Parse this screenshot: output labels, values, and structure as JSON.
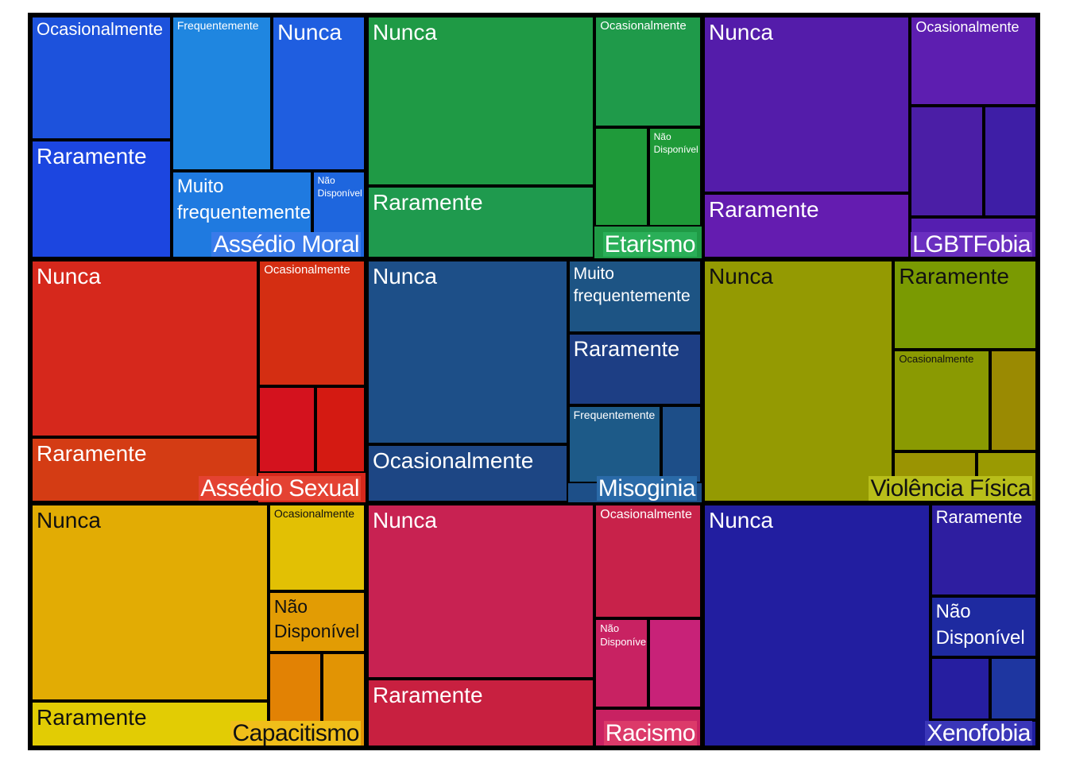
{
  "chart_data": {
    "type": "treemap",
    "title": "",
    "groups": [
      {
        "name": "Assédio Moral",
        "color": "#1f56dc",
        "label_bg": "#3a7bea",
        "label_dark": false,
        "items": [
          {
            "label": "Ocasionalmente",
            "value": 2.1,
            "color": "#1d52dc"
          },
          {
            "label": "Raramente",
            "value": 2.0,
            "color": "#1c46e0"
          },
          {
            "label": "Frequentemente",
            "value": 1.6,
            "color": "#1f86e0"
          },
          {
            "label": "Nunca",
            "value": 1.7,
            "color": "#1f5ee0"
          },
          {
            "label": "Muito frequentemente",
            "value": 1.2,
            "color": "#1f7ae0"
          },
          {
            "label": "Não Disponível",
            "value": 0.45,
            "color": "#1e66de"
          }
        ]
      },
      {
        "name": "Etarismo",
        "color": "#1f9a45",
        "label_bg": "#2aaf58",
        "label_dark": false,
        "items": [
          {
            "label": "Nunca",
            "value": 3.6,
            "color": "#1f9a45"
          },
          {
            "label": "Raramente",
            "value": 2.2,
            "color": "#1f9a4e"
          },
          {
            "label": "Ocasionalmente",
            "value": 1.15,
            "color": "#1f9a4a"
          },
          {
            "label": "",
            "value": 0.7,
            "color": "#1f9a3a"
          },
          {
            "label": "Não Disponível",
            "value": 0.6,
            "color": "#1f9a38"
          }
        ]
      },
      {
        "name": "LGBTFobia",
        "color": "#5a1cb0",
        "label_bg": "#6a2fc0",
        "label_dark": false,
        "items": [
          {
            "label": "Nunca",
            "value": 3.6,
            "color": "#541caa"
          },
          {
            "label": "Raramente",
            "value": 1.3,
            "color": "#641cb0"
          },
          {
            "label": "Ocasionalmente",
            "value": 1.3,
            "color": "#5d1eb0"
          },
          {
            "label": "",
            "value": 0.85,
            "color": "#4b1ea6"
          },
          {
            "label": "",
            "value": 0.55,
            "color": "#3e1ea6"
          },
          {
            "label": "",
            "value": 0.3,
            "color": "#551eb0"
          }
        ]
      },
      {
        "name": "Assédio Sexual",
        "color": "#d6281c",
        "label_bg": "#e44232",
        "label_dark": false,
        "items": [
          {
            "label": "Nunca",
            "value": 4.0,
            "color": "#d6281c"
          },
          {
            "label": "Raramente",
            "value": 1.2,
            "color": "#d43c14"
          },
          {
            "label": "Ocasionalmente",
            "value": 1.3,
            "color": "#d42e12"
          },
          {
            "label": "",
            "value": 0.65,
            "color": "#d4121e"
          },
          {
            "label": "",
            "value": 0.5,
            "color": "#d41a12"
          }
        ]
      },
      {
        "name": "Misoginia",
        "color": "#1d4f88",
        "label_bg": "#2a6aa8",
        "label_dark": false,
        "items": [
          {
            "label": "Nunca",
            "value": 3.5,
            "color": "#1d4f88"
          },
          {
            "label": "Ocasionalmente",
            "value": 1.15,
            "color": "#1d4684"
          },
          {
            "label": "Muito frequentemente",
            "value": 0.85,
            "color": "#1d5484"
          },
          {
            "label": "Raramente",
            "value": 0.85,
            "color": "#1d3e84"
          },
          {
            "label": "Frequentemente",
            "value": 0.75,
            "color": "#1d5a88"
          },
          {
            "label": "",
            "value": 0.3,
            "color": "#1d4e88"
          }
        ]
      },
      {
        "name": "Violência Física",
        "color": "#949c02",
        "label_bg": "#b8be1a",
        "label_dark": true,
        "items": [
          {
            "label": "Nunca",
            "value": 4.2,
            "color": "#949a02"
          },
          {
            "label": "Raramente",
            "value": 1.6,
            "color": "#7a9a02"
          },
          {
            "label": "Ocasionalmente",
            "value": 1.5,
            "color": "#8a9a02"
          },
          {
            "label": "",
            "value": 0.65,
            "color": "#9a8a02"
          },
          {
            "label": "",
            "value": 0.4,
            "color": "#9a9402"
          },
          {
            "label": "",
            "value": 0.35,
            "color": "#9a9a02"
          }
        ]
      },
      {
        "name": "Capacitismo",
        "color": "#e2ac04",
        "label_bg": "#f0be1a",
        "label_dark": true,
        "items": [
          {
            "label": "Nunca",
            "value": 4.5,
            "color": "#e2ac04"
          },
          {
            "label": "Raramente",
            "value": 1.0,
            "color": "#e2cc04"
          },
          {
            "label": "Ocasionalmente",
            "value": 1.2,
            "color": "#e2c004"
          },
          {
            "label": "Não Disponível",
            "value": 0.8,
            "color": "#e29c04"
          },
          {
            "label": "",
            "value": 0.7,
            "color": "#e28204"
          },
          {
            "label": "",
            "value": 0.6,
            "color": "#e29404"
          }
        ]
      },
      {
        "name": "Racismo",
        "color": "#c82252",
        "label_bg": "#dc3a6a",
        "label_dark": false,
        "items": [
          {
            "label": "Nunca",
            "value": 4.0,
            "color": "#c82252"
          },
          {
            "label": "Raramente",
            "value": 1.2,
            "color": "#c82040"
          },
          {
            "label": "Ocasionalmente",
            "value": 1.2,
            "color": "#c8224a"
          },
          {
            "label": "Não Disponível",
            "value": 0.75,
            "color": "#c82262"
          },
          {
            "label": "",
            "value": 0.75,
            "color": "#c82278"
          },
          {
            "label": "",
            "value": 0.3,
            "color": "#c82262"
          }
        ]
      },
      {
        "name": "Xenofobia",
        "color": "#221ea0",
        "label_bg": "#3a36b8",
        "label_dark": false,
        "items": [
          {
            "label": "Nunca",
            "value": 5.5,
            "color": "#221ea0"
          },
          {
            "label": "Raramente",
            "value": 0.8,
            "color": "#2e1ea0"
          },
          {
            "label": "Não Disponível",
            "value": 0.5,
            "color": "#1e2aa0"
          },
          {
            "label": "",
            "value": 0.5,
            "color": "#261ea0"
          },
          {
            "label": "",
            "value": 0.35,
            "color": "#1e36a0"
          },
          {
            "label": "",
            "value": 0.25,
            "color": "#1e1ea0"
          }
        ]
      }
    ]
  }
}
